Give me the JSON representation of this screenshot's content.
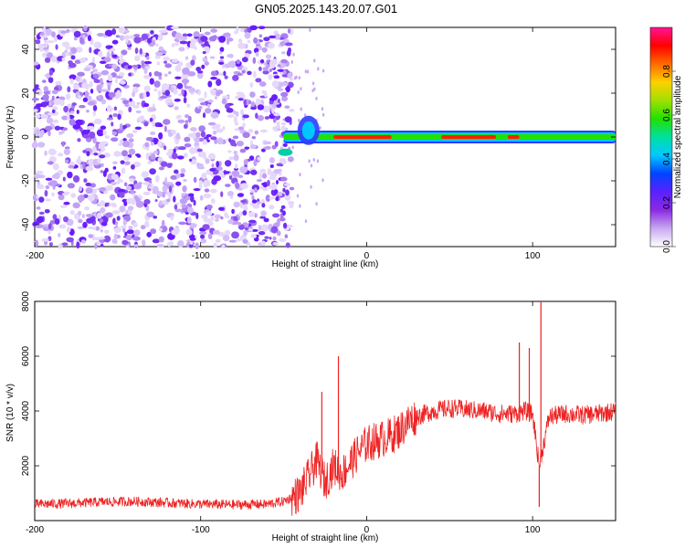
{
  "figure_title": "GN05.2025.143.20.07.G01",
  "chart_data": [
    {
      "type": "heatmap",
      "xlabel": "Height of straight line (km)",
      "ylabel": "Frequency (Hz)",
      "xlim": [
        -200,
        150
      ],
      "ylim": [
        -50,
        50
      ],
      "xticks": [
        -200,
        -100,
        0,
        100
      ],
      "yticks": [
        -40,
        -20,
        0,
        20,
        40
      ],
      "colorbar": {
        "label": "Normalized spectral amplitude",
        "range": [
          0,
          1
        ],
        "ticks": [
          "0.0",
          "0.2",
          "0.4",
          "0.6",
          "0.8"
        ],
        "colormap": [
          "#ffffff",
          "#c8a8f0",
          "#8a2be2",
          "#5a20ff",
          "#0044ff",
          "#00c8ff",
          "#00e0a0",
          "#22e000",
          "#a0e000",
          "#ffd000",
          "#ff6a00",
          "#ff0000",
          "#ff1493"
        ]
      },
      "features": {
        "noise_region_x": [
          -200,
          -45
        ],
        "ridge_frequency_hz": 0,
        "ridge_x": [
          -50,
          150
        ],
        "ridge_peak_segments_x": [
          [
            -20,
            15
          ],
          [
            45,
            78
          ],
          [
            85,
            92
          ]
        ]
      }
    },
    {
      "type": "line",
      "xlabel": "Height of straight line (km)",
      "ylabel": "SNR (10 * v/v)",
      "xlim": [
        -200,
        150
      ],
      "ylim": [
        0,
        8000
      ],
      "xticks": [
        -200,
        -100,
        0,
        100
      ],
      "yticks": [
        2000,
        4000,
        6000,
        8000
      ],
      "line_color": "#ee2222",
      "series": [
        {
          "x": [
            -200,
            -180,
            -160,
            -140,
            -120,
            -100,
            -80,
            -60,
            -50,
            -40,
            -35,
            -30,
            -25,
            -20,
            -15,
            -10,
            -5,
            0,
            5,
            10,
            15,
            20,
            25,
            30,
            40,
            50,
            60,
            70,
            80,
            90,
            95,
            100,
            104,
            110,
            120,
            130,
            140,
            150
          ],
          "values": [
            600,
            620,
            680,
            700,
            650,
            600,
            580,
            600,
            700,
            1000,
            1600,
            2200,
            1400,
            2000,
            1700,
            2100,
            2500,
            2800,
            2900,
            3000,
            3100,
            3300,
            3600,
            3800,
            4000,
            4100,
            4050,
            4000,
            3900,
            3900,
            4000,
            3900,
            2000,
            3800,
            3900,
            3850,
            3900,
            4000
          ]
        }
      ],
      "spikes": [
        {
          "x": -27,
          "value": 4700
        },
        {
          "x": -17,
          "value": 6000
        },
        {
          "x": 92,
          "value": 6500
        },
        {
          "x": 98,
          "value": 6300
        },
        {
          "x": 105,
          "value": 8000
        },
        {
          "x": 104,
          "value": 500
        }
      ]
    }
  ]
}
